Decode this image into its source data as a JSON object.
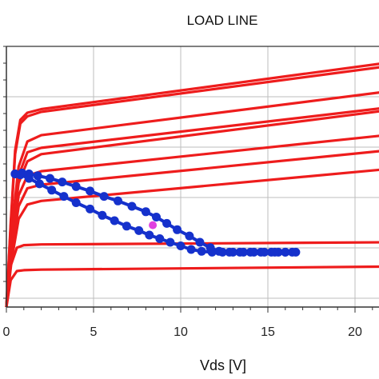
{
  "chart_data": {
    "type": "line",
    "title": "LOAD LINE",
    "xlabel": "Vds [V]",
    "ylabel": "",
    "xlim": [
      0,
      22
    ],
    "x_ticks": [
      0,
      5,
      10,
      15,
      20
    ],
    "x_tick_labels": [
      "0",
      "5",
      "10",
      "15",
      "20"
    ],
    "grid": true,
    "colors": {
      "curves": "#ee1c1c",
      "loadline": "#1531cc",
      "marker": "#e040e0",
      "grid": "#bdbdbd",
      "frame": "#333333"
    },
    "series": [
      {
        "kind": "curve",
        "x": [
          0,
          0.25,
          0.6,
          1,
          2,
          22
        ],
        "values": [
          0.0,
          0.23,
          0.33,
          0.344,
          0.348,
          0.36
        ]
      },
      {
        "kind": "curve",
        "x": [
          0,
          0.25,
          0.6,
          1,
          2,
          22
        ],
        "values": [
          0.0,
          0.15,
          0.2,
          0.205,
          0.208,
          0.225
        ]
      },
      {
        "kind": "curve",
        "x": [
          0,
          0.3,
          0.7,
          1.2,
          2,
          22
        ],
        "values": [
          0.0,
          0.26,
          0.49,
          0.57,
          0.59,
          0.768
        ]
      },
      {
        "kind": "curve",
        "x": [
          0,
          0.3,
          0.7,
          1.2,
          2,
          22
        ],
        "values": [
          0.0,
          0.3,
          0.56,
          0.66,
          0.68,
          0.872
        ]
      },
      {
        "kind": "curve",
        "x": [
          0,
          0.3,
          0.7,
          1.2,
          2,
          22
        ],
        "values": [
          0.0,
          0.33,
          0.62,
          0.73,
          0.755,
          0.958
        ]
      },
      {
        "kind": "curve",
        "x": [
          0,
          0.3,
          0.7,
          1.2,
          2,
          22
        ],
        "values": [
          0.0,
          0.37,
          0.69,
          0.81,
          0.85,
          1.095
        ]
      },
      {
        "kind": "curve",
        "x": [
          0,
          0.3,
          0.7,
          1.2,
          2,
          22
        ],
        "values": [
          0.0,
          0.4,
          0.73,
          0.86,
          0.885,
          1.11
        ]
      },
      {
        "kind": "curve",
        "x": [
          0,
          0.3,
          0.7,
          1.2,
          2,
          22
        ],
        "values": [
          0.0,
          0.43,
          0.78,
          0.92,
          0.955,
          1.2
        ]
      },
      {
        "kind": "curve",
        "x": [
          0,
          0.25,
          0.5,
          0.8,
          1.2,
          2,
          22
        ],
        "values": [
          0.0,
          0.45,
          0.85,
          1.02,
          1.06,
          1.085,
          1.34
        ]
      },
      {
        "kind": "curve",
        "x": [
          0,
          0.25,
          0.5,
          0.8,
          1.2,
          2,
          22
        ],
        "values": [
          0.0,
          0.47,
          0.87,
          1.04,
          1.08,
          1.1,
          1.36
        ]
      },
      {
        "kind": "loadline",
        "x": [
          0.5,
          0.9,
          1.3,
          1.8,
          2.5,
          3.2,
          4.0,
          4.8,
          5.6,
          6.4,
          7.2,
          8.0,
          8.6,
          9.2,
          9.8,
          10.5,
          11.1,
          11.7,
          12.2,
          12.8,
          13.4,
          14.0,
          14.6,
          15.2,
          15.6,
          16.0,
          16.4,
          16.6,
          16.0,
          15.4,
          14.8,
          14.2,
          13.6,
          13.0,
          12.4,
          11.8,
          11.2,
          10.6,
          10.0,
          9.4,
          8.8,
          8.2,
          7.6,
          6.9,
          6.2,
          5.5,
          4.8,
          4.0,
          3.3,
          2.6,
          1.9,
          1.3,
          0.8,
          0.5
        ],
        "values": [
          0.74,
          0.745,
          0.74,
          0.73,
          0.715,
          0.695,
          0.67,
          0.645,
          0.615,
          0.59,
          0.56,
          0.53,
          0.5,
          0.465,
          0.43,
          0.395,
          0.36,
          0.33,
          0.31,
          0.305,
          0.305,
          0.305,
          0.305,
          0.305,
          0.305,
          0.305,
          0.305,
          0.305,
          0.305,
          0.305,
          0.305,
          0.305,
          0.305,
          0.305,
          0.305,
          0.305,
          0.31,
          0.32,
          0.34,
          0.36,
          0.38,
          0.4,
          0.425,
          0.45,
          0.48,
          0.51,
          0.545,
          0.58,
          0.615,
          0.65,
          0.685,
          0.715,
          0.735,
          0.74
        ]
      },
      {
        "kind": "marker",
        "x": [
          8.4
        ],
        "values": [
          0.455
        ]
      }
    ]
  }
}
